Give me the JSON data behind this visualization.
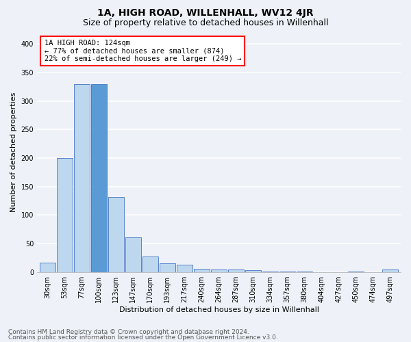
{
  "title": "1A, HIGH ROAD, WILLENHALL, WV12 4JR",
  "subtitle": "Size of property relative to detached houses in Willenhall",
  "xlabel": "Distribution of detached houses by size in Willenhall",
  "ylabel": "Number of detached properties",
  "categories": [
    "30sqm",
    "53sqm",
    "77sqm",
    "100sqm",
    "123sqm",
    "147sqm",
    "170sqm",
    "193sqm",
    "217sqm",
    "240sqm",
    "264sqm",
    "287sqm",
    "310sqm",
    "334sqm",
    "357sqm",
    "380sqm",
    "404sqm",
    "427sqm",
    "450sqm",
    "474sqm",
    "497sqm"
  ],
  "values": [
    17,
    200,
    330,
    330,
    132,
    61,
    27,
    15,
    13,
    6,
    4,
    4,
    3,
    1,
    1,
    1,
    0,
    0,
    1,
    0,
    5
  ],
  "highlight_index": 3,
  "highlight_bar_color": "#5b9bd5",
  "normal_bar_color": "#bdd7ee",
  "bar_edge_color": "#4472c4",
  "annotation_text": "1A HIGH ROAD: 124sqm\n← 77% of detached houses are smaller (874)\n22% of semi-detached houses are larger (249) →",
  "annotation_box_color": "white",
  "annotation_box_edge_color": "red",
  "ylim": [
    0,
    420
  ],
  "yticks": [
    0,
    50,
    100,
    150,
    200,
    250,
    300,
    350,
    400
  ],
  "footer_line1": "Contains HM Land Registry data © Crown copyright and database right 2024.",
  "footer_line2": "Contains public sector information licensed under the Open Government Licence v3.0.",
  "background_color": "#eef2f8",
  "plot_background_color": "#eef2f8",
  "grid_color": "white",
  "title_fontsize": 10,
  "subtitle_fontsize": 9,
  "axis_label_fontsize": 8,
  "tick_fontsize": 7,
  "annotation_fontsize": 7.5,
  "footer_fontsize": 6.5
}
